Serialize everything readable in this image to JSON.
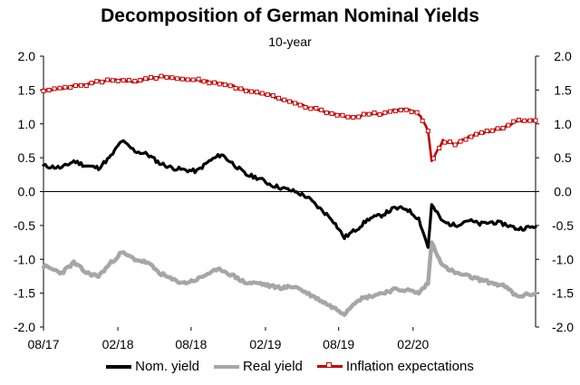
{
  "chart_data": {
    "type": "line",
    "title": "Decomposition of German Nominal Yields",
    "subtitle": "10-year",
    "x_tick_labels": [
      "08/17",
      "02/18",
      "08/18",
      "02/19",
      "08/19",
      "02/20"
    ],
    "y_left_ticks": [
      "2.0",
      "1.5",
      "1.0",
      "0.5",
      "0.0",
      "-0.5",
      "-1.0",
      "-1.5",
      "-2.0"
    ],
    "y_right_ticks": [
      "2.0",
      "1.5",
      "1.0",
      "0.5",
      "0.0",
      "-0.5",
      "-1.0",
      "-1.5",
      "-2.0"
    ],
    "ylim": [
      -2.0,
      2.0
    ],
    "xlim": [
      "2017-08-01",
      "2020-11-30"
    ],
    "legend_position": "bottom",
    "grid": false,
    "series": [
      {
        "name": "Nom. yield",
        "color": "#000000",
        "dates": [
          "2017-08-01",
          "2017-09-15",
          "2017-10-15",
          "2017-11-15",
          "2017-12-15",
          "2018-01-15",
          "2018-02-10",
          "2018-03-15",
          "2018-04-15",
          "2018-05-15",
          "2018-06-15",
          "2018-07-15",
          "2018-08-15",
          "2018-09-15",
          "2018-10-15",
          "2018-11-15",
          "2018-12-15",
          "2019-01-15",
          "2019-02-15",
          "2019-03-15",
          "2019-04-15",
          "2019-05-15",
          "2019-06-15",
          "2019-07-15",
          "2019-08-15",
          "2019-09-15",
          "2019-10-15",
          "2019-11-15",
          "2019-12-15",
          "2020-01-15",
          "2020-02-15",
          "2020-03-09",
          "2020-03-18",
          "2020-04-15",
          "2020-05-15",
          "2020-06-15",
          "2020-07-15",
          "2020-08-15",
          "2020-09-15",
          "2020-10-15",
          "2020-11-30"
        ],
        "values": [
          0.38,
          0.35,
          0.45,
          0.38,
          0.35,
          0.52,
          0.75,
          0.6,
          0.55,
          0.42,
          0.35,
          0.32,
          0.3,
          0.45,
          0.55,
          0.4,
          0.25,
          0.2,
          0.1,
          0.05,
          0.0,
          -0.08,
          -0.25,
          -0.4,
          -0.68,
          -0.55,
          -0.4,
          -0.35,
          -0.25,
          -0.25,
          -0.4,
          -0.82,
          -0.2,
          -0.45,
          -0.5,
          -0.42,
          -0.48,
          -0.45,
          -0.48,
          -0.55,
          -0.52
        ]
      },
      {
        "name": "Real yield",
        "color": "#a6a6a6",
        "dates": [
          "2017-08-01",
          "2017-09-15",
          "2017-10-15",
          "2017-11-15",
          "2017-12-15",
          "2018-01-15",
          "2018-02-10",
          "2018-03-15",
          "2018-04-15",
          "2018-05-15",
          "2018-06-15",
          "2018-07-15",
          "2018-08-15",
          "2018-09-15",
          "2018-10-15",
          "2018-11-15",
          "2018-12-15",
          "2019-01-15",
          "2019-02-15",
          "2019-03-15",
          "2019-04-15",
          "2019-05-15",
          "2019-06-15",
          "2019-07-15",
          "2019-08-15",
          "2019-09-15",
          "2019-10-15",
          "2019-11-15",
          "2019-12-15",
          "2020-01-15",
          "2020-02-15",
          "2020-03-09",
          "2020-03-18",
          "2020-04-15",
          "2020-05-15",
          "2020-06-15",
          "2020-07-15",
          "2020-08-15",
          "2020-09-15",
          "2020-10-15",
          "2020-11-30"
        ],
        "values": [
          -1.1,
          -1.2,
          -1.05,
          -1.2,
          -1.25,
          -1.05,
          -0.9,
          -1.0,
          -1.05,
          -1.2,
          -1.3,
          -1.35,
          -1.3,
          -1.2,
          -1.15,
          -1.25,
          -1.35,
          -1.35,
          -1.4,
          -1.42,
          -1.4,
          -1.5,
          -1.6,
          -1.7,
          -1.8,
          -1.6,
          -1.55,
          -1.5,
          -1.45,
          -1.45,
          -1.5,
          -1.35,
          -0.75,
          -1.1,
          -1.2,
          -1.25,
          -1.3,
          -1.35,
          -1.4,
          -1.55,
          -1.5
        ]
      },
      {
        "name": "Inflation expectations",
        "color": "#c00000",
        "dates": [
          "2017-08-01",
          "2017-09-15",
          "2017-10-15",
          "2017-11-15",
          "2017-12-15",
          "2018-01-15",
          "2018-02-10",
          "2018-03-15",
          "2018-04-15",
          "2018-05-15",
          "2018-06-15",
          "2018-07-15",
          "2018-08-15",
          "2018-09-15",
          "2018-10-15",
          "2018-11-15",
          "2018-12-15",
          "2019-01-15",
          "2019-02-15",
          "2019-03-15",
          "2019-04-15",
          "2019-05-15",
          "2019-06-15",
          "2019-07-15",
          "2019-08-15",
          "2019-09-15",
          "2019-10-15",
          "2019-11-15",
          "2019-12-15",
          "2020-01-15",
          "2020-02-15",
          "2020-03-09",
          "2020-03-18",
          "2020-04-15",
          "2020-05-15",
          "2020-06-15",
          "2020-07-15",
          "2020-08-15",
          "2020-09-15",
          "2020-10-15",
          "2020-11-30"
        ],
        "values": [
          1.48,
          1.52,
          1.55,
          1.58,
          1.62,
          1.65,
          1.65,
          1.62,
          1.66,
          1.7,
          1.68,
          1.65,
          1.65,
          1.62,
          1.6,
          1.55,
          1.5,
          1.45,
          1.42,
          1.35,
          1.32,
          1.25,
          1.2,
          1.15,
          1.12,
          1.1,
          1.15,
          1.15,
          1.2,
          1.22,
          1.15,
          0.9,
          0.45,
          0.75,
          0.7,
          0.8,
          0.85,
          0.9,
          0.95,
          1.05,
          1.05
        ]
      }
    ]
  }
}
